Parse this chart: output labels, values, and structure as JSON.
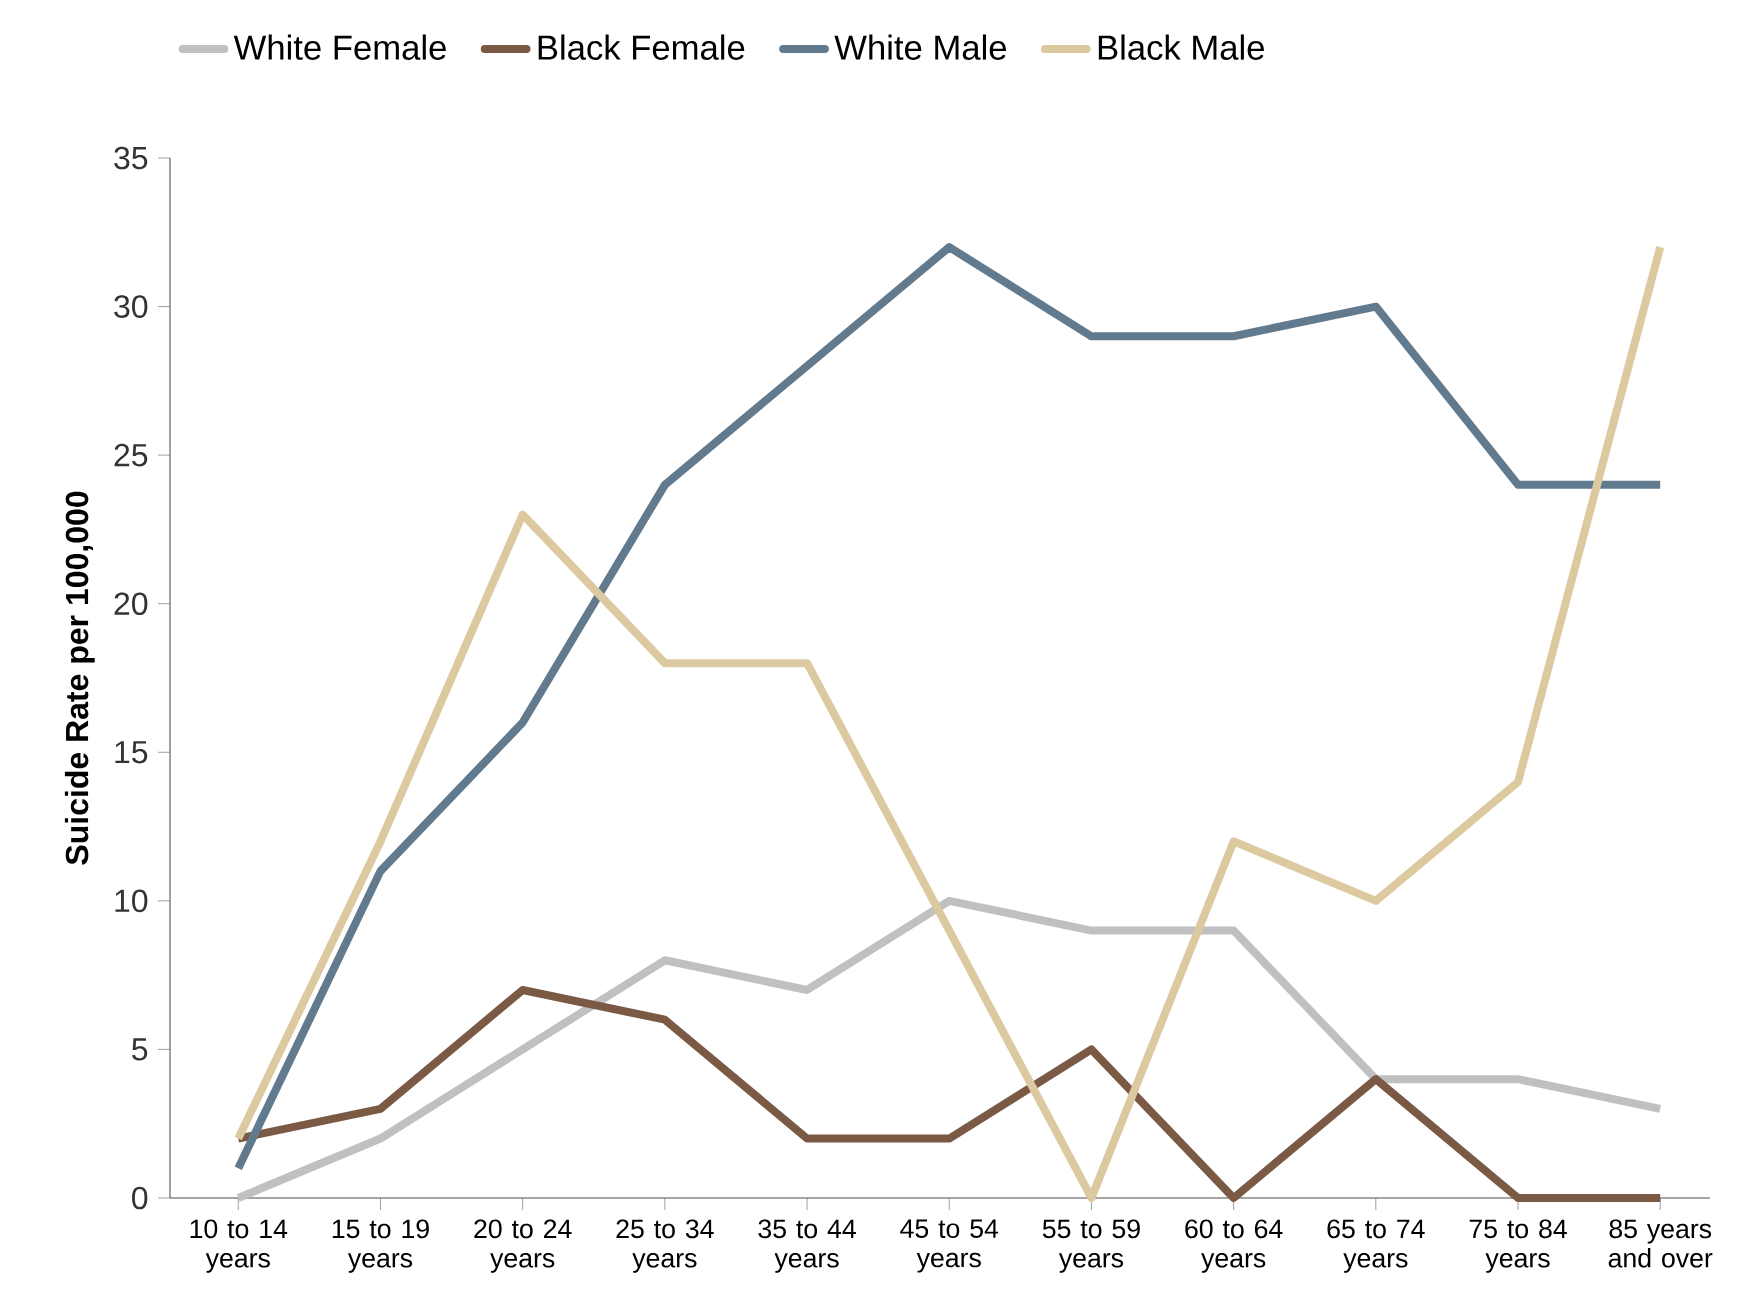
{
  "chart_data": {
    "type": "line",
    "ylabel": "Suicide Rate per 100,000",
    "categories": [
      "10 to 14 years",
      "15 to 19 years",
      "20 to 24 years",
      "25 to 34 years",
      "35 to 44 years",
      "45 to 54 years",
      "55 to 59 years",
      "60 to 64 years",
      "65 to 74 years",
      "75 to 84 years",
      "85 years and over"
    ],
    "series": [
      {
        "name": "White Female",
        "color": "#c0bfc2",
        "values": [
          0,
          2,
          5,
          8,
          7,
          10,
          9,
          9,
          4,
          4,
          3
        ]
      },
      {
        "name": "Black Female",
        "color": "#7a5a44",
        "values": [
          2,
          3,
          7,
          6,
          2,
          2,
          5,
          0,
          4,
          0,
          0
        ]
      },
      {
        "name": "White Male",
        "color": "#617a8e",
        "values": [
          1,
          11,
          16,
          24,
          28,
          32,
          29,
          29,
          30,
          24,
          24
        ]
      },
      {
        "name": "Black Male",
        "color": "#dcc9a0",
        "values": [
          2,
          12,
          23,
          18,
          18,
          9,
          0,
          12,
          10,
          14,
          32
        ]
      }
    ],
    "ylim": [
      0,
      35
    ],
    "yticks": [
      0,
      5,
      10,
      15,
      20,
      25,
      30,
      35
    ],
    "grid": false,
    "legend": "top left",
    "marker": "none",
    "line_style": "solid"
  }
}
